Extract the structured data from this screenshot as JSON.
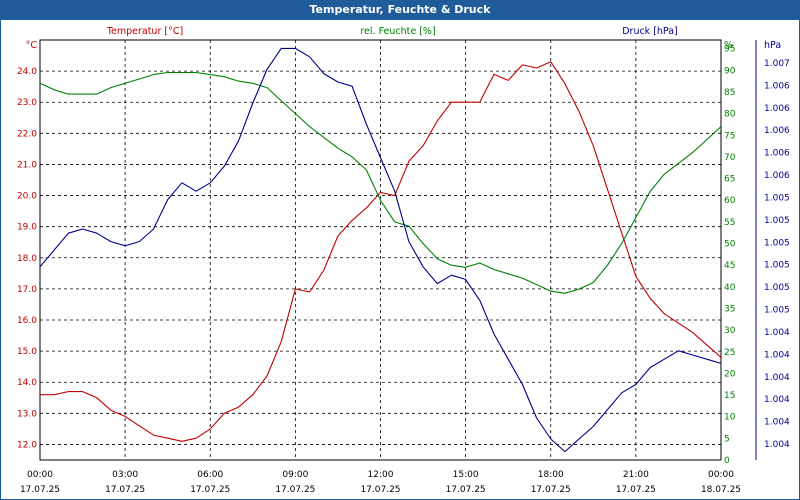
{
  "window": {
    "title": "Temperatur, Feuchte & Druck"
  },
  "chart_data": {
    "type": "line",
    "title": "Temperatur, Feuchte & Druck",
    "x_ticks": [
      {
        "time": "00:00",
        "date": "17.07.25"
      },
      {
        "time": "03:00",
        "date": "17.07.25"
      },
      {
        "time": "06:00",
        "date": "17.07.25"
      },
      {
        "time": "09:00",
        "date": "17.07.25"
      },
      {
        "time": "12:00",
        "date": "17.07.25"
      },
      {
        "time": "15:00",
        "date": "17.07.25"
      },
      {
        "time": "18:00",
        "date": "17.07.25"
      },
      {
        "time": "21:00",
        "date": "17.07.25"
      },
      {
        "time": "00:00",
        "date": "18.07.25"
      }
    ],
    "x_range_hours": [
      0,
      24
    ],
    "grid": true,
    "axes": {
      "temperature": {
        "label": "Temperatur [°C]",
        "unit": "°C",
        "color": "#c00000",
        "range": [
          11.5,
          25.0
        ],
        "ticks": [
          "12.0",
          "13.0",
          "14.0",
          "15.0",
          "16.0",
          "17.0",
          "18.0",
          "19.0",
          "20.0",
          "21.0",
          "22.0",
          "23.0",
          "24.0"
        ]
      },
      "humidity": {
        "label": "rel. Feuchte [%]",
        "unit": "%",
        "color": "#008000",
        "range": [
          0,
          97
        ],
        "ticks": [
          "0",
          "5",
          "10",
          "15",
          "20",
          "25",
          "30",
          "35",
          "40",
          "45",
          "50",
          "55",
          "60",
          "65",
          "70",
          "75",
          "80",
          "85",
          "90",
          "95"
        ]
      },
      "pressure": {
        "label": "Druck [hPa]",
        "unit": "hPa",
        "color": "#00008b",
        "range": [
          0,
          1
        ],
        "ticks": [
          "1.004",
          "1.004",
          "1.004",
          "1.004",
          "1.004",
          "1.004",
          "1.005",
          "1.005",
          "1.005",
          "1.005",
          "1.005",
          "1.005",
          "1.006",
          "1.006",
          "1.006",
          "1.006",
          "1.006",
          "1.007"
        ]
      }
    },
    "series": [
      {
        "name": "Temperatur [°C]",
        "axis": "temperature",
        "color": "#c00000",
        "x": [
          0,
          0.5,
          1,
          1.5,
          2,
          2.5,
          3,
          3.5,
          4,
          4.5,
          5,
          5.5,
          6,
          6.5,
          7,
          7.5,
          8,
          8.5,
          9,
          9.5,
          10,
          10.5,
          11,
          11.5,
          12,
          12.5,
          13,
          13.5,
          14,
          14.5,
          15,
          15.5,
          16,
          16.5,
          17,
          17.5,
          18,
          18.5,
          19,
          19.5,
          20,
          20.5,
          21,
          21.5,
          22,
          22.5,
          23,
          23.5,
          24
        ],
        "values": [
          13.6,
          13.6,
          13.7,
          13.7,
          13.5,
          13.1,
          12.9,
          12.6,
          12.3,
          12.2,
          12.1,
          12.2,
          12.5,
          13.0,
          13.2,
          13.6,
          14.2,
          15.3,
          17.0,
          16.9,
          17.6,
          18.7,
          19.2,
          19.6,
          20.1,
          20.0,
          21.1,
          21.6,
          22.4,
          23.0,
          23.0,
          23.0,
          23.9,
          23.7,
          24.2,
          24.1,
          24.3,
          23.6,
          22.7,
          21.6,
          20.2,
          18.8,
          17.4,
          16.7,
          16.2,
          15.9,
          15.6,
          15.2,
          14.8
        ]
      },
      {
        "name": "rel. Feuchte [%]",
        "axis": "humidity",
        "color": "#008000",
        "x": [
          0,
          0.5,
          1,
          1.5,
          2,
          2.5,
          3,
          3.5,
          4,
          4.5,
          5,
          5.5,
          6,
          6.5,
          7,
          7.5,
          8,
          8.5,
          9,
          9.5,
          10,
          10.5,
          11,
          11.5,
          12,
          12.5,
          13,
          13.5,
          14,
          14.5,
          15,
          15.5,
          16,
          16.5,
          17,
          17.5,
          18,
          18.5,
          19,
          19.5,
          20,
          20.5,
          21,
          21.5,
          22,
          22.5,
          23,
          23.5,
          24
        ],
        "values": [
          87,
          85.5,
          84.5,
          84.5,
          84.5,
          86,
          87,
          88,
          89,
          89.5,
          89.5,
          89.5,
          89,
          88.5,
          87.5,
          87,
          86,
          83,
          80,
          77,
          74.5,
          72,
          70,
          67,
          60,
          55,
          54,
          50,
          46.5,
          45,
          44.5,
          45.5,
          44,
          43,
          42,
          40.5,
          39,
          38.5,
          39.5,
          41,
          45,
          50,
          56,
          62,
          66,
          68.5,
          71,
          74,
          77
        ]
      },
      {
        "name": "Druck [hPa]",
        "axis": "pressure",
        "color": "#00008b",
        "x": [
          0,
          0.5,
          1,
          1.5,
          2,
          2.5,
          3,
          3.5,
          4,
          4.5,
          5,
          5.5,
          6,
          6.5,
          7,
          7.5,
          8,
          8.5,
          9,
          9.5,
          10,
          10.5,
          11,
          11.5,
          12,
          12.5,
          13,
          13.5,
          14,
          14.5,
          15,
          15.5,
          16,
          16.5,
          17,
          17.5,
          18,
          18.5,
          19,
          19.5,
          20,
          20.5,
          21,
          21.5,
          22,
          22.5,
          23,
          23.5,
          24
        ],
        "values": [
          0.46,
          0.5,
          0.54,
          0.55,
          0.54,
          0.52,
          0.51,
          0.52,
          0.55,
          0.62,
          0.66,
          0.64,
          0.66,
          0.7,
          0.76,
          0.85,
          0.93,
          0.98,
          0.98,
          0.96,
          0.92,
          0.9,
          0.89,
          0.8,
          0.72,
          0.64,
          0.52,
          0.46,
          0.42,
          0.44,
          0.43,
          0.38,
          0.3,
          0.24,
          0.18,
          0.1,
          0.05,
          0.02,
          0.05,
          0.08,
          0.12,
          0.16,
          0.18,
          0.22,
          0.24,
          0.26,
          0.25,
          0.24,
          0.23
        ]
      }
    ]
  }
}
